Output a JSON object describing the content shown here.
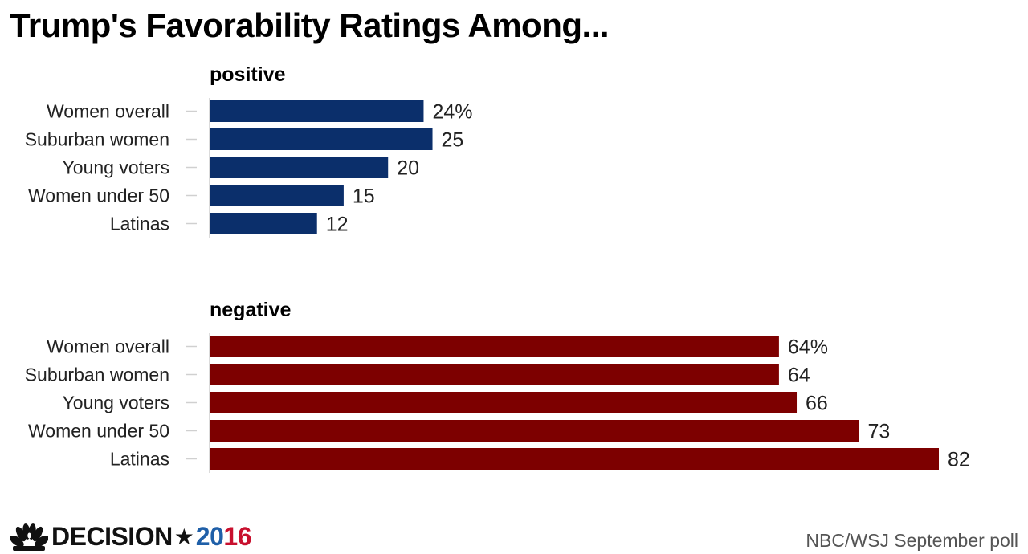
{
  "title": "Trump's Favorability Ratings Among...",
  "chart_data": [
    {
      "type": "bar",
      "orientation": "horizontal",
      "title": "positive",
      "categories": [
        "Women overall",
        "Suburban women",
        "Young voters",
        "Women under 50",
        "Latinas"
      ],
      "values": [
        24,
        25,
        20,
        15,
        12
      ],
      "value_labels": [
        "24%",
        "25",
        "20",
        "15",
        "12"
      ],
      "xlim": [
        0,
        82
      ],
      "color": "#0b2f6b",
      "grid": false
    },
    {
      "type": "bar",
      "orientation": "horizontal",
      "title": "negative",
      "categories": [
        "Women overall",
        "Suburban women",
        "Young voters",
        "Women under 50",
        "Latinas"
      ],
      "values": [
        64,
        64,
        66,
        73,
        82
      ],
      "value_labels": [
        "64%",
        "64",
        "66",
        "73",
        "82"
      ],
      "xlim": [
        0,
        82
      ],
      "color": "#7d0000",
      "grid": false
    }
  ],
  "footer": {
    "brand_word": "DECISION",
    "brand_star": "★",
    "brand_year_part1": "20",
    "brand_year_part2": "16",
    "brand_year_color1": "#1f5fa8",
    "brand_year_color2": "#c8102e",
    "source": "NBC/WSJ September poll"
  }
}
